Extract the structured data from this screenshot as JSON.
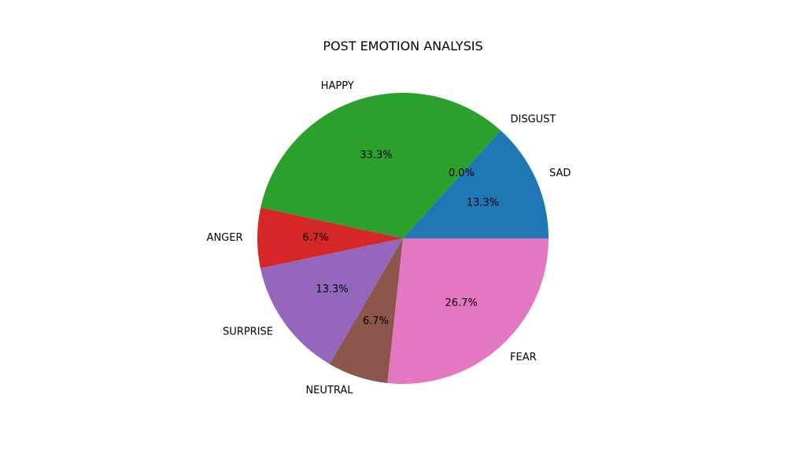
{
  "chart_data": {
    "type": "pie",
    "title": "POST EMOTION ANALYSIS",
    "slices": [
      {
        "label": "SAD",
        "value": 13.3,
        "pct_label": "13.3%",
        "color": "#1f77b4"
      },
      {
        "label": "DISGUST",
        "value": 0.0,
        "pct_label": "0.0%",
        "color": "#ff7f0e"
      },
      {
        "label": "HAPPY",
        "value": 33.3,
        "pct_label": "33.3%",
        "color": "#2ca02c"
      },
      {
        "label": "ANGER",
        "value": 6.7,
        "pct_label": "6.7%",
        "color": "#d62728"
      },
      {
        "label": "SURPRISE",
        "value": 13.3,
        "pct_label": "13.3%",
        "color": "#9467bd"
      },
      {
        "label": "NEUTRAL",
        "value": 6.7,
        "pct_label": "6.7%",
        "color": "#8c564b"
      },
      {
        "label": "FEAR",
        "value": 26.7,
        "pct_label": "26.7%",
        "color": "#e377c2"
      }
    ],
    "start_angle_deg": 0,
    "direction": "counterclockwise",
    "legend": "none"
  }
}
